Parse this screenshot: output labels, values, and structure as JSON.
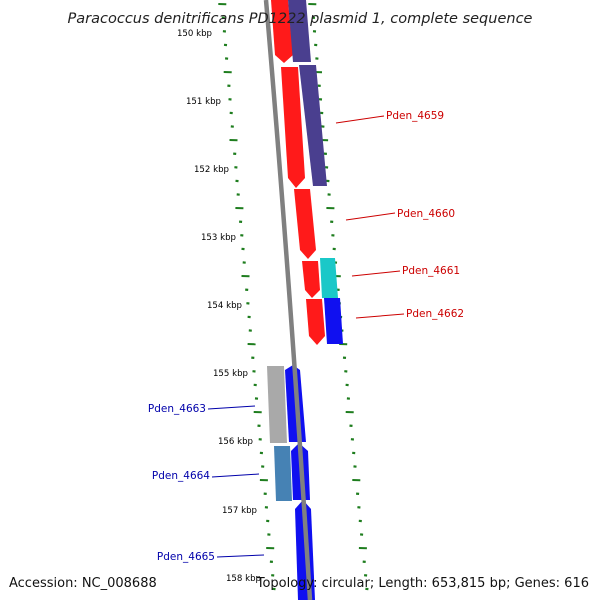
{
  "title": "Paracoccus denitrificans PD1222 plasmid 1, complete sequence",
  "footer": {
    "accession": "Accession: NC_008688",
    "topology": "Topology: circular; Length: 653,815 bp; Genes: 616"
  },
  "colors": {
    "backbone": "#808080",
    "tick": "#1e7d1e",
    "forward_label": "#cc0000",
    "reverse_label": "#0000aa",
    "red_gene": "#ff1a1a",
    "purple_gene": "#4a3f8f",
    "cyan_gene": "#1ac8c8",
    "blue_gene": "#1010f0",
    "grey_gene": "#a9a9a9",
    "steel_gene": "#4682b4"
  },
  "scale": {
    "labels": [
      "150 kbp",
      "151 kbp",
      "152 kbp",
      "153 kbp",
      "154 kbp",
      "155 kbp",
      "156 kbp",
      "157 kbp",
      "158 kbp"
    ]
  },
  "gene_labels": {
    "forward": [
      "Pden_4659",
      "Pden_4660",
      "Pden_4661",
      "Pden_4662"
    ],
    "reverse": [
      "Pden_4663",
      "Pden_4664",
      "Pden_4665"
    ]
  }
}
